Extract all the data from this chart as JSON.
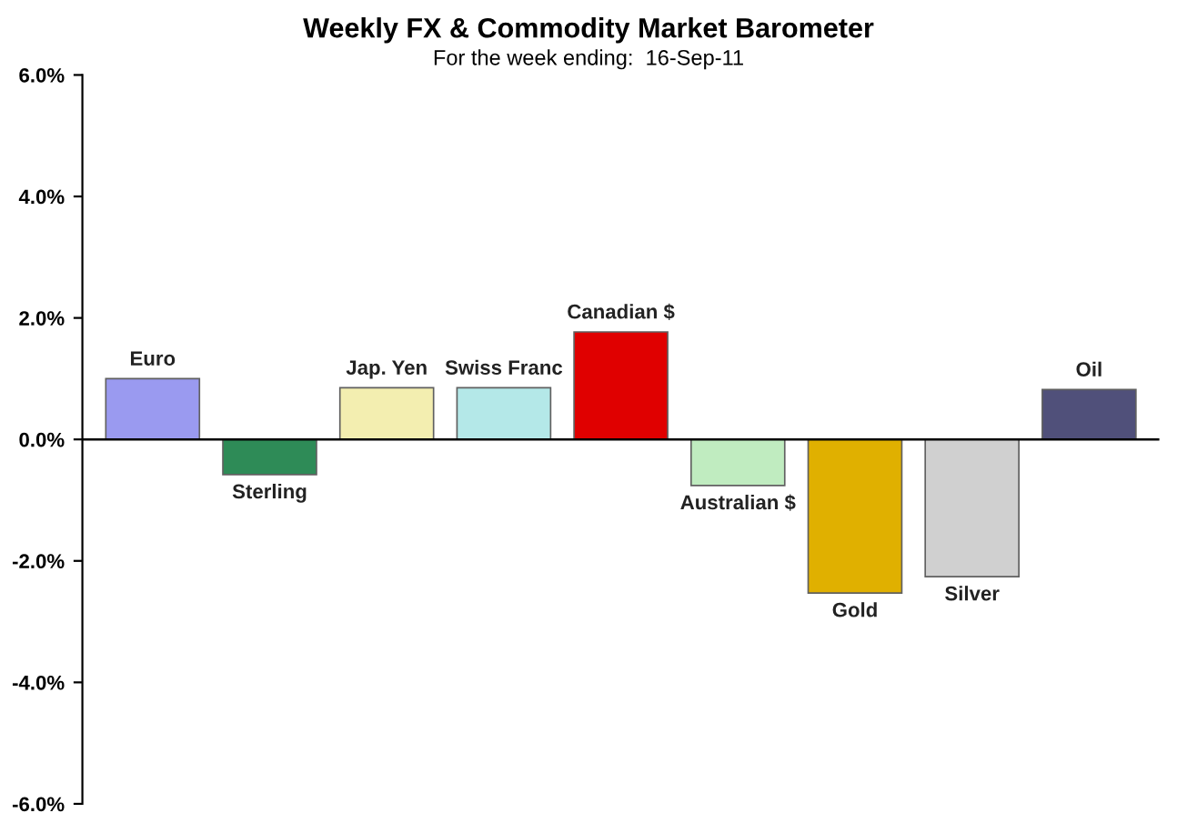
{
  "chart_data": {
    "type": "bar",
    "title": "Weekly FX & Commodity Market Barometer",
    "subtitle": "For the week ending:  16-Sep-11",
    "categories": [
      "Euro",
      "Sterling",
      "Jap. Yen",
      "Swiss Franc",
      "Canadian $",
      "Australian $",
      "Gold",
      "Silver",
      "Oil"
    ],
    "values": [
      1.0,
      -0.58,
      0.85,
      0.85,
      1.77,
      -0.76,
      -2.53,
      -2.26,
      0.82
    ],
    "colors": [
      "#9a9af0",
      "#2e8b57",
      "#f3eeb0",
      "#b4e8e8",
      "#e00000",
      "#c0ecc0",
      "#e0b000",
      "#d0d0d0",
      "#50507a"
    ],
    "ylim": [
      -6,
      6
    ],
    "yticks": [
      {
        "value": -6,
        "label": "-6.0%"
      },
      {
        "value": -4,
        "label": "-4.0%"
      },
      {
        "value": -2,
        "label": "-2.0%"
      },
      {
        "value": 0,
        "label": "0.0%"
      },
      {
        "value": 2,
        "label": "2.0%"
      },
      {
        "value": 4,
        "label": "4.0%"
      },
      {
        "value": 6,
        "label": "6.0%"
      }
    ],
    "ref_lines": [
      {
        "axis": "y",
        "value": 0,
        "color": "#000000"
      }
    ],
    "grid": false
  }
}
